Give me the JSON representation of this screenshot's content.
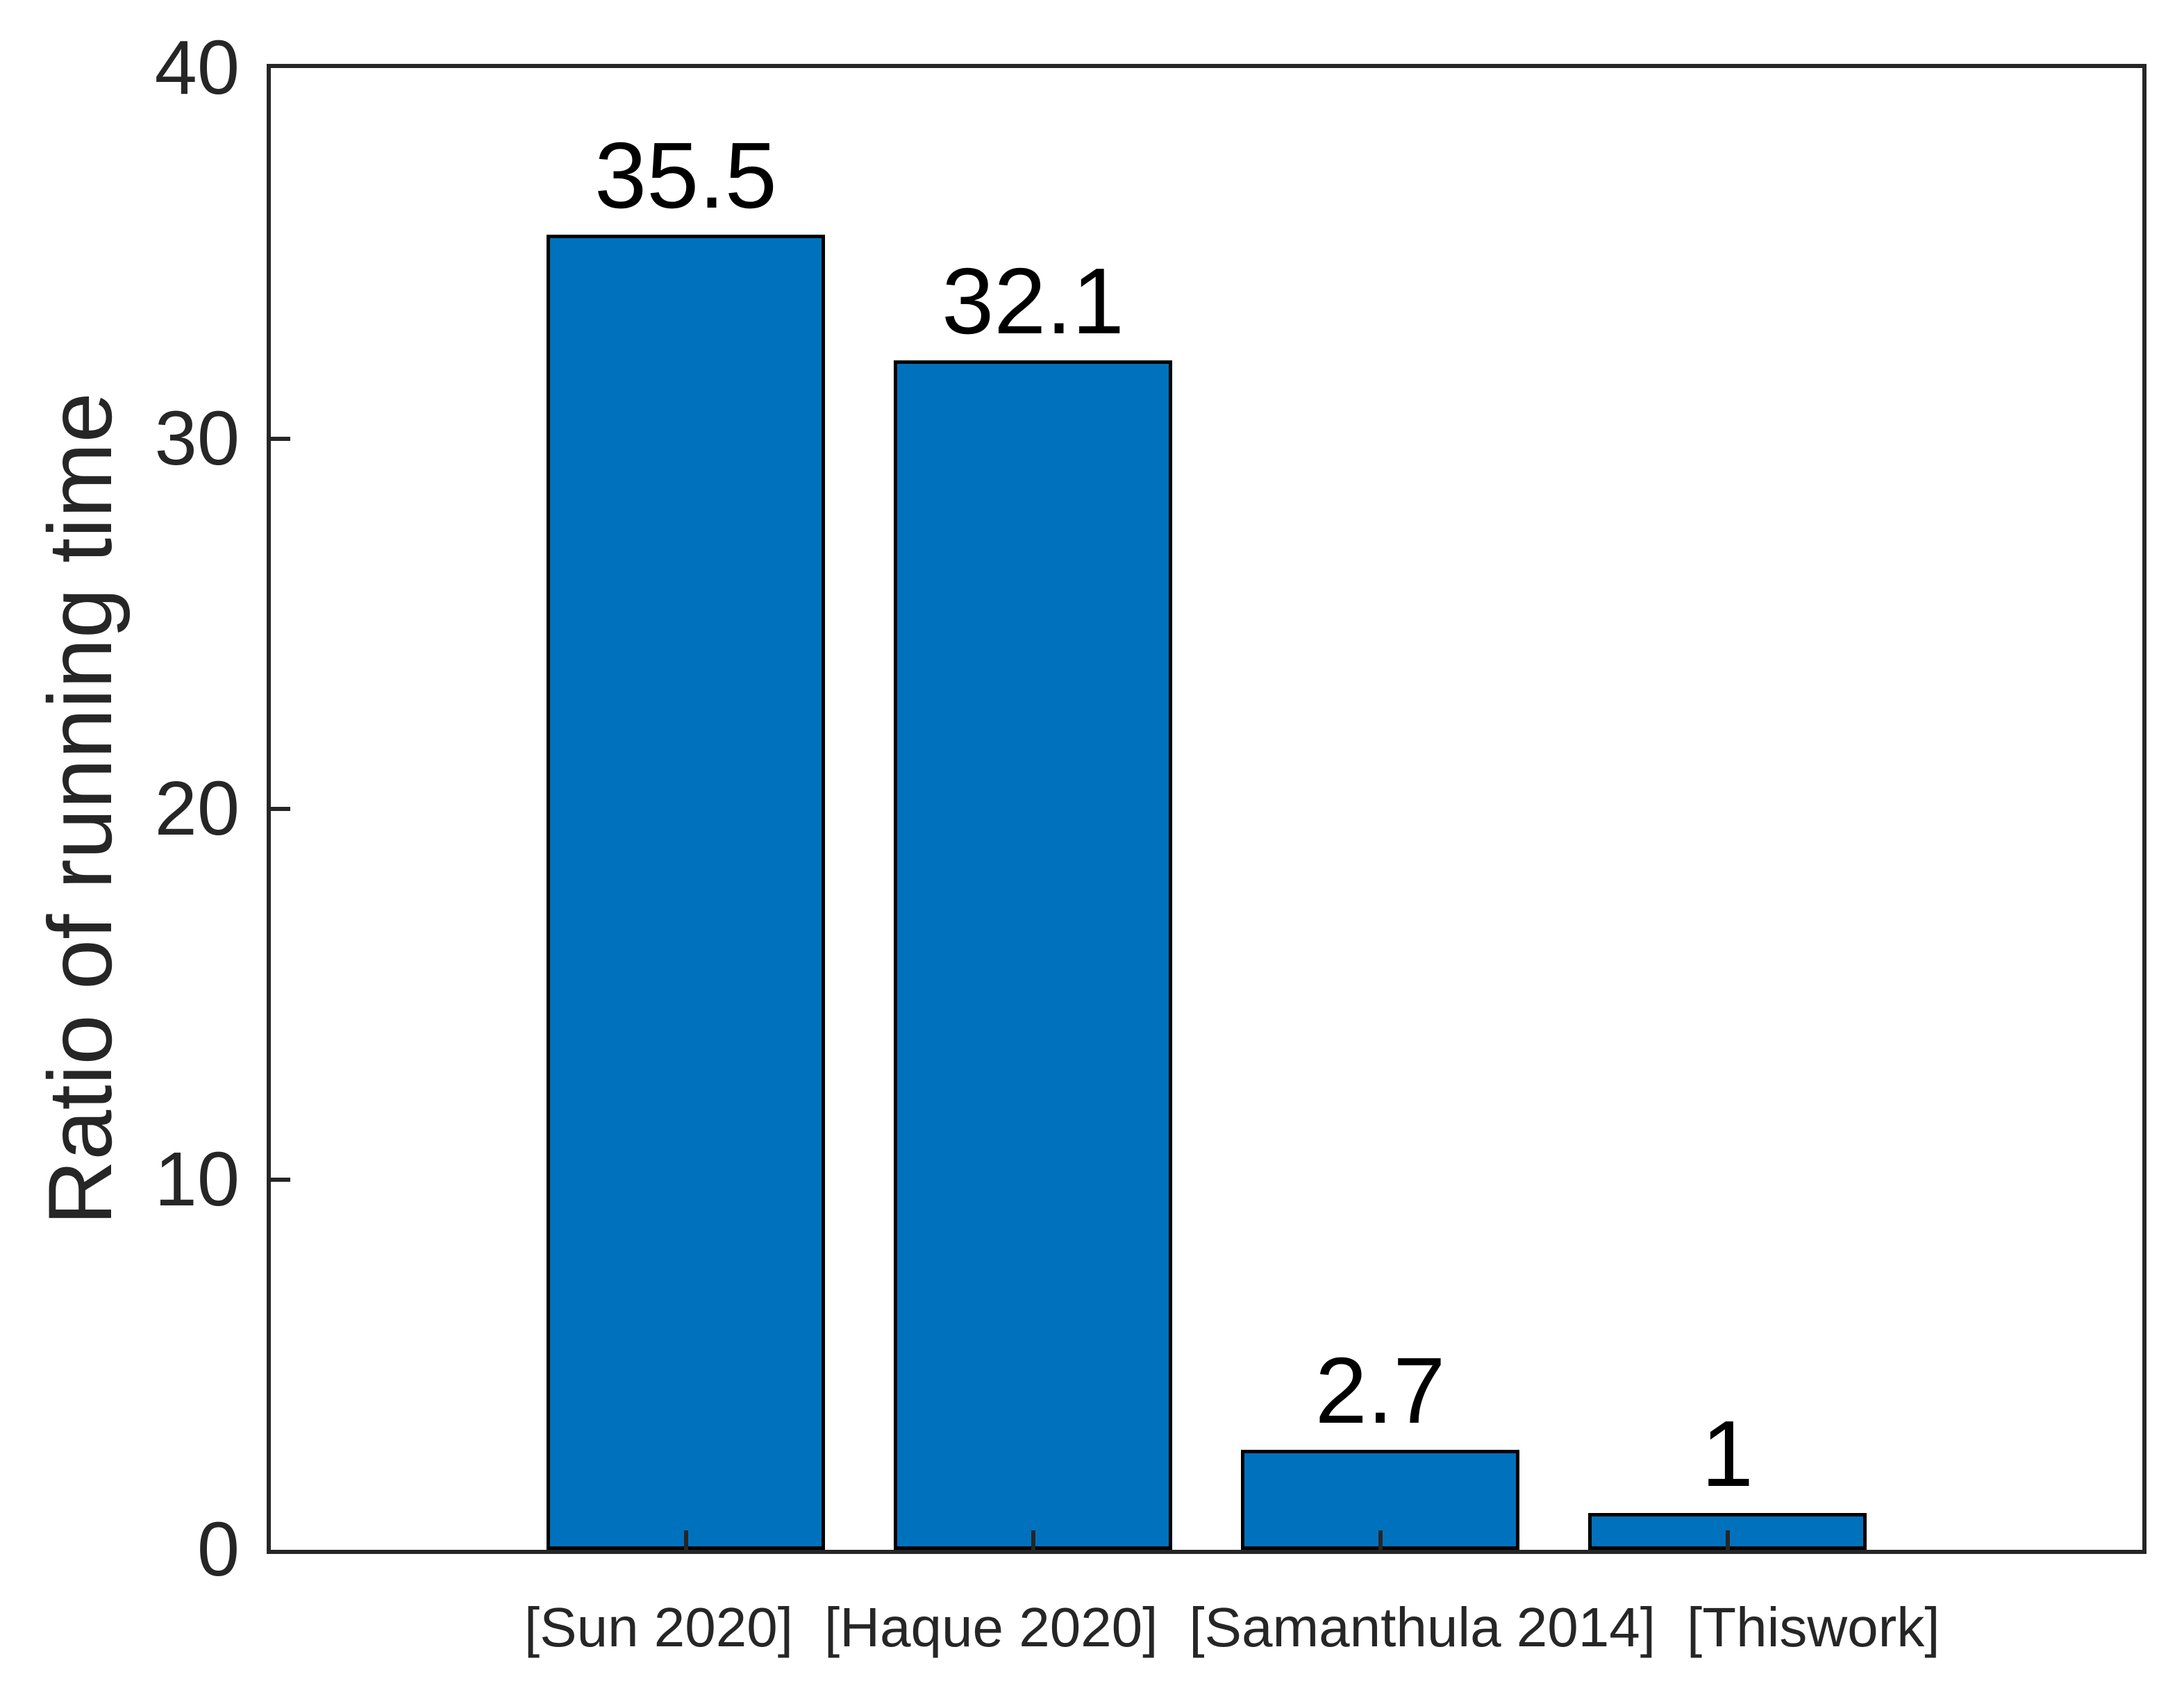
{
  "chart_data": {
    "type": "bar",
    "title": "",
    "categories": [
      "[Sun 2020]",
      "[Haque 2020]",
      "[Samanthula 2014]",
      "[Thiswork]"
    ],
    "values": [
      35.5,
      32.1,
      2.7,
      1
    ],
    "value_labels": [
      "35.5",
      "32.1",
      "2.7",
      "1"
    ],
    "xlabel": "",
    "ylabel": "Ratio of running time",
    "ylim": [
      0,
      40
    ],
    "yticks": [
      0,
      10,
      20,
      30,
      40
    ],
    "ytick_labels": [
      "0",
      "10",
      "20",
      "30",
      "40"
    ],
    "grid": false,
    "legend": null,
    "box": true,
    "tick_direction": "in",
    "bar_color": "#0072BD",
    "bar_edge_color": "#000000",
    "axis_color": "#262626",
    "value_label_color": "#000000",
    "background": "#FFFFFF"
  }
}
